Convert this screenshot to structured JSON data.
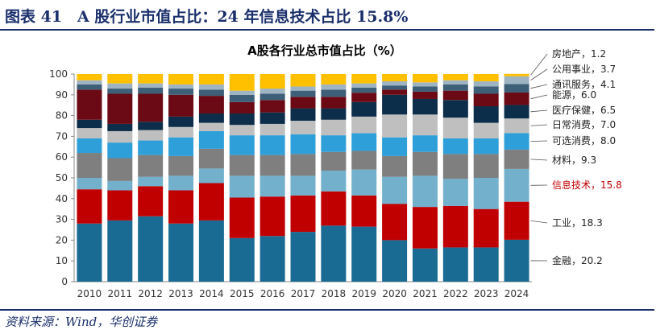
{
  "figure": {
    "title": "图表 41　A 股行业市值占比：24 年信息技术占比 15.8%",
    "source": "资料来源：Wind，华创证券"
  },
  "colors": {
    "金融": "#1a6b93",
    "工业": "#c00000",
    "信息技术": "#72b0cc",
    "材料": "#7f7f7f",
    "可选消费": "#2e9fd8",
    "日常消费": "#bfbfbf",
    "医疗保健": "#0d2e4a",
    "能源": "#6b0a14",
    "通讯服务": "#3e5f78",
    "公用事业": "#9fb4c2",
    "房地产": "#ffc000",
    "highlight_text": "#c00000",
    "header": "#1a2f6b"
  },
  "chart_data": {
    "type": "bar",
    "stacked": true,
    "title": "A股各行业总市值占比（%）",
    "categories": [
      "2010",
      "2011",
      "2012",
      "2013",
      "2014",
      "2015",
      "2016",
      "2017",
      "2018",
      "2019",
      "2020",
      "2021",
      "2022",
      "2023",
      "2024"
    ],
    "ylim": [
      0,
      100
    ],
    "yticks": [
      0,
      10,
      20,
      30,
      40,
      50,
      60,
      70,
      80,
      90,
      100
    ],
    "grid": false,
    "legend": "right",
    "series": [
      {
        "name": "金融",
        "values": [
          28.0,
          29.5,
          31.5,
          28.0,
          29.5,
          21.0,
          22.0,
          24.0,
          27.0,
          26.5,
          20.0,
          16.0,
          16.5,
          16.5,
          20.2
        ]
      },
      {
        "name": "工业",
        "values": [
          16.5,
          14.5,
          14.5,
          16.0,
          18.0,
          19.5,
          19.0,
          17.5,
          16.5,
          15.0,
          17.5,
          20.0,
          20.0,
          18.5,
          18.3
        ]
      },
      {
        "name": "信息技术",
        "values": [
          5.5,
          4.5,
          4.5,
          7.0,
          7.0,
          10.5,
          10.0,
          9.5,
          10.0,
          12.5,
          13.0,
          15.0,
          13.0,
          15.0,
          15.8
        ]
      },
      {
        "name": "材料",
        "values": [
          12.0,
          11.0,
          10.5,
          9.5,
          9.5,
          10.0,
          10.0,
          10.5,
          9.0,
          9.0,
          10.0,
          11.5,
          12.0,
          11.5,
          9.3
        ]
      },
      {
        "name": "可选消费",
        "values": [
          7.0,
          7.5,
          7.0,
          9.0,
          8.5,
          9.5,
          9.5,
          9.5,
          8.0,
          8.5,
          9.0,
          8.0,
          7.5,
          7.5,
          8.0
        ]
      },
      {
        "name": "日常消费",
        "values": [
          5.0,
          5.5,
          5.0,
          5.0,
          4.0,
          5.0,
          5.5,
          6.5,
          7.5,
          8.0,
          11.0,
          10.0,
          10.0,
          7.5,
          7.0
        ]
      },
      {
        "name": "医疗保健",
        "values": [
          4.0,
          3.5,
          4.0,
          5.0,
          4.5,
          5.5,
          5.5,
          6.0,
          5.5,
          7.0,
          9.5,
          7.5,
          8.5,
          8.0,
          6.5
        ]
      },
      {
        "name": "能源",
        "values": [
          14.5,
          14.5,
          13.5,
          10.5,
          8.5,
          5.5,
          6.0,
          5.5,
          5.5,
          4.5,
          2.5,
          3.5,
          4.5,
          6.0,
          6.0
        ]
      },
      {
        "name": "通讯服务",
        "values": [
          2.5,
          2.5,
          3.0,
          3.0,
          3.0,
          3.5,
          3.0,
          3.0,
          3.5,
          2.5,
          2.0,
          2.5,
          3.0,
          3.5,
          4.1
        ]
      },
      {
        "name": "公用事业",
        "values": [
          2.0,
          2.5,
          2.0,
          2.0,
          2.5,
          2.0,
          2.5,
          2.0,
          2.5,
          2.0,
          2.0,
          2.0,
          2.0,
          2.5,
          3.7
        ]
      },
      {
        "name": "房地产",
        "values": [
          3.0,
          4.5,
          4.5,
          5.0,
          5.0,
          8.0,
          7.0,
          6.0,
          5.0,
          4.5,
          3.5,
          4.0,
          3.0,
          3.5,
          1.2
        ]
      }
    ],
    "annotations": [
      {
        "series": "房地产",
        "label": "房地产，1.2",
        "highlight": false
      },
      {
        "series": "公用事业",
        "label": "公用事业，3.7",
        "highlight": false
      },
      {
        "series": "通讯服务",
        "label": "通讯服务，4.1",
        "highlight": false
      },
      {
        "series": "能源",
        "label": "能源，6.0",
        "highlight": false
      },
      {
        "series": "医疗保健",
        "label": "医疗保健，6.5",
        "highlight": false
      },
      {
        "series": "日常消费",
        "label": "日常消费，7.0",
        "highlight": false
      },
      {
        "series": "可选消费",
        "label": "可选消费，8.0",
        "highlight": false
      },
      {
        "series": "材料",
        "label": "材料，9.3",
        "highlight": false
      },
      {
        "series": "信息技术",
        "label": "信息技术，15.8",
        "highlight": true
      },
      {
        "series": "工业",
        "label": "工业，18.3",
        "highlight": false
      },
      {
        "series": "金融",
        "label": "金融，20.2",
        "highlight": false
      }
    ]
  }
}
